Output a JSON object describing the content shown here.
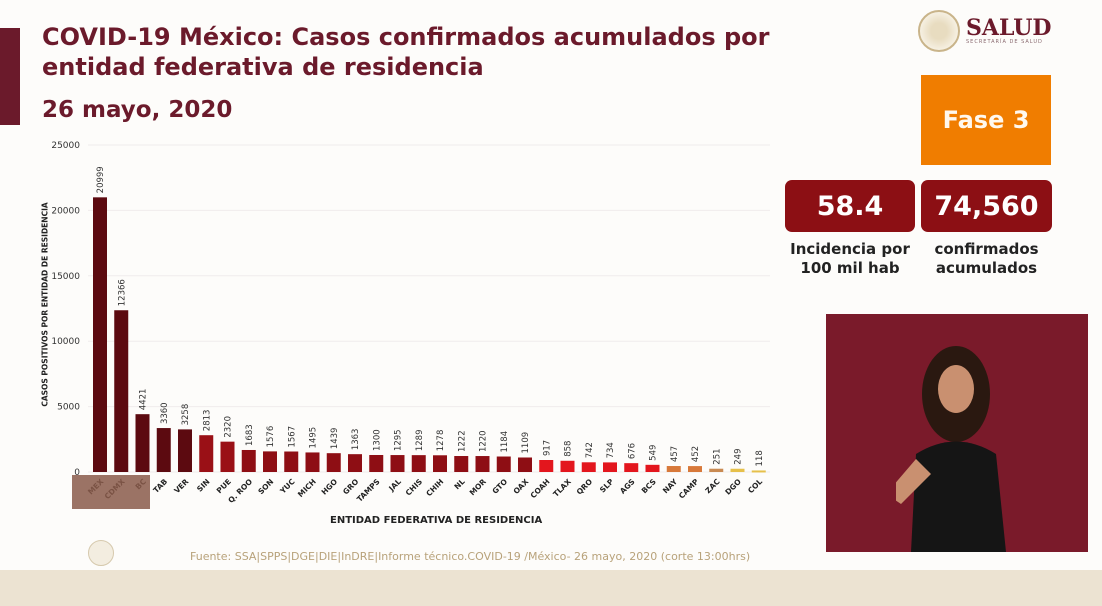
{
  "header": {
    "title": "COVID-19 México: Casos confirmados acumulados por entidad federativa de residencia",
    "date": "26 mayo, 2020",
    "logo_text": "SALUD",
    "logo_subtext": "SECRETARÍA DE SALUD"
  },
  "phase": {
    "label": "Fase 3",
    "color": "#f07d00"
  },
  "stats": [
    {
      "value": "58.4",
      "caption": "Incidencia por 100 mil hab"
    },
    {
      "value": "74,560",
      "caption": "confirmados acumulados"
    }
  ],
  "source": "Fuente: SSA|SPPS|DGE|DIE|InDRE|Informe técnico.COVID-19 /México- 26 mayo, 2020 (corte 13:00hrs)",
  "chart_data": {
    "type": "bar",
    "title": "COVID-19 México: Casos confirmados acumulados por entidad federativa de residencia",
    "xlabel": "ENTIDAD FEDERATIVA DE RESIDENCIA",
    "ylabel": "CASOS POSITIVOS POR ENTIDAD DE RESIDENCIA",
    "ylim": [
      0,
      25000
    ],
    "yticks": [
      0,
      5000,
      10000,
      15000,
      20000,
      25000
    ],
    "categories": [
      "MEX",
      "CDMX",
      "BC",
      "TAB",
      "VER",
      "SIN",
      "PUE",
      "Q. ROO",
      "SON",
      "YUC",
      "MICH",
      "HGO",
      "GRO",
      "TAMPS",
      "JAL",
      "CHIS",
      "CHIH",
      "NL",
      "MOR",
      "GTO",
      "OAX",
      "COAH",
      "TLAX",
      "QRO",
      "SLP",
      "AGS",
      "BCS",
      "NAY",
      "CAMP",
      "ZAC",
      "DGO",
      "COL"
    ],
    "values": [
      20999,
      12366,
      4421,
      3360,
      3258,
      2813,
      2320,
      1683,
      1576,
      1567,
      1495,
      1439,
      1363,
      1300,
      1295,
      1289,
      1278,
      1222,
      1220,
      1184,
      1109,
      917,
      858,
      742,
      734,
      676,
      549,
      457,
      452,
      251,
      249,
      118
    ],
    "colors": [
      "#5c0a10",
      "#5c0a10",
      "#5c0a10",
      "#5c0a10",
      "#5c0a10",
      "#9a1016",
      "#9a1016",
      "#8e0e14",
      "#8e0e14",
      "#8e0e14",
      "#8e0e14",
      "#8e0e14",
      "#8e0e14",
      "#8e0e14",
      "#8e0e14",
      "#8e0e14",
      "#8e0e14",
      "#8e0e14",
      "#8e0e14",
      "#8e0e14",
      "#8e0e14",
      "#e3161d",
      "#e3161d",
      "#e3161d",
      "#e3161d",
      "#e3161d",
      "#e3161d",
      "#d8793a",
      "#d8793a",
      "#c98a52",
      "#e6c04a",
      "#e6c04a"
    ]
  }
}
